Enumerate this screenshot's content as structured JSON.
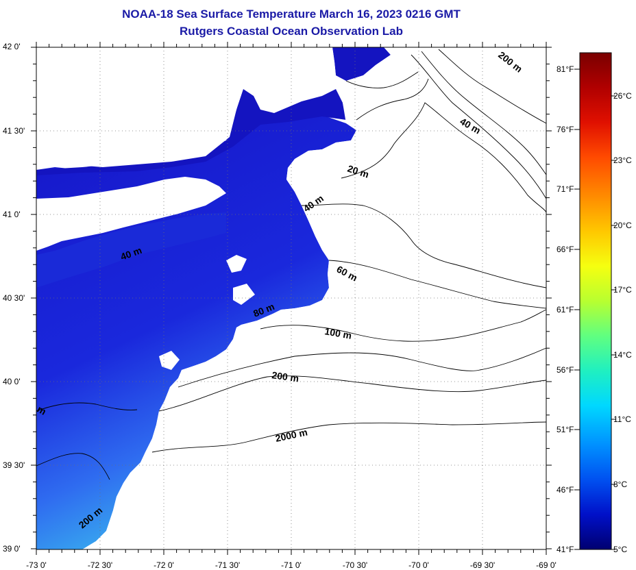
{
  "title": "NOAA-18 Sea Surface Temperature March 16, 2023 0216 GMT",
  "subtitle": "Rutgers Coastal Ocean Observation Lab",
  "latitude_labels": [
    "42 0'",
    "41 30'",
    "41 0'",
    "40 30'",
    "40 0'",
    "39 30'",
    "39 0'"
  ],
  "longitude_labels": [
    "-73 0'",
    "-72 30'",
    "-72 0'",
    "-71 30'",
    "-71 0'",
    "-70 30'",
    "-70 0'",
    "-69 30'",
    "-69 0'"
  ],
  "colorbar": {
    "fahrenheit_labels": [
      "81°F",
      "76°F",
      "71°F",
      "66°F",
      "61°F",
      "56°F",
      "51°F",
      "46°F",
      "41°F"
    ],
    "celsius_labels": [
      "26°C",
      "23°C",
      "20°C",
      "17°C",
      "14°C",
      "11°C",
      "8°C",
      "5°C"
    ],
    "colors": [
      "#7a0000",
      "#b00000",
      "#e01000",
      "#ff4a00",
      "#ff8c00",
      "#ffc800",
      "#f5ff10",
      "#b8ff30",
      "#60ff80",
      "#20f0c0",
      "#00d8ff",
      "#0090ff",
      "#0050f0",
      "#0010c8",
      "#000070"
    ]
  },
  "isobath_labels": [
    "200 m",
    "40 m",
    "20 m",
    "40 m",
    "40 m",
    "60 m",
    "80 m",
    "100 m",
    "200 m",
    "2000 m",
    "m",
    "200 m"
  ],
  "map_colors": {
    "sst_dark": "#1212c8",
    "sst_mid": "#2a3ee8",
    "sst_light": "#3f7cf2",
    "sst_cyan": "#26c8ee",
    "land": "#ffffff",
    "contour": "#000000",
    "grid": "#707070"
  }
}
